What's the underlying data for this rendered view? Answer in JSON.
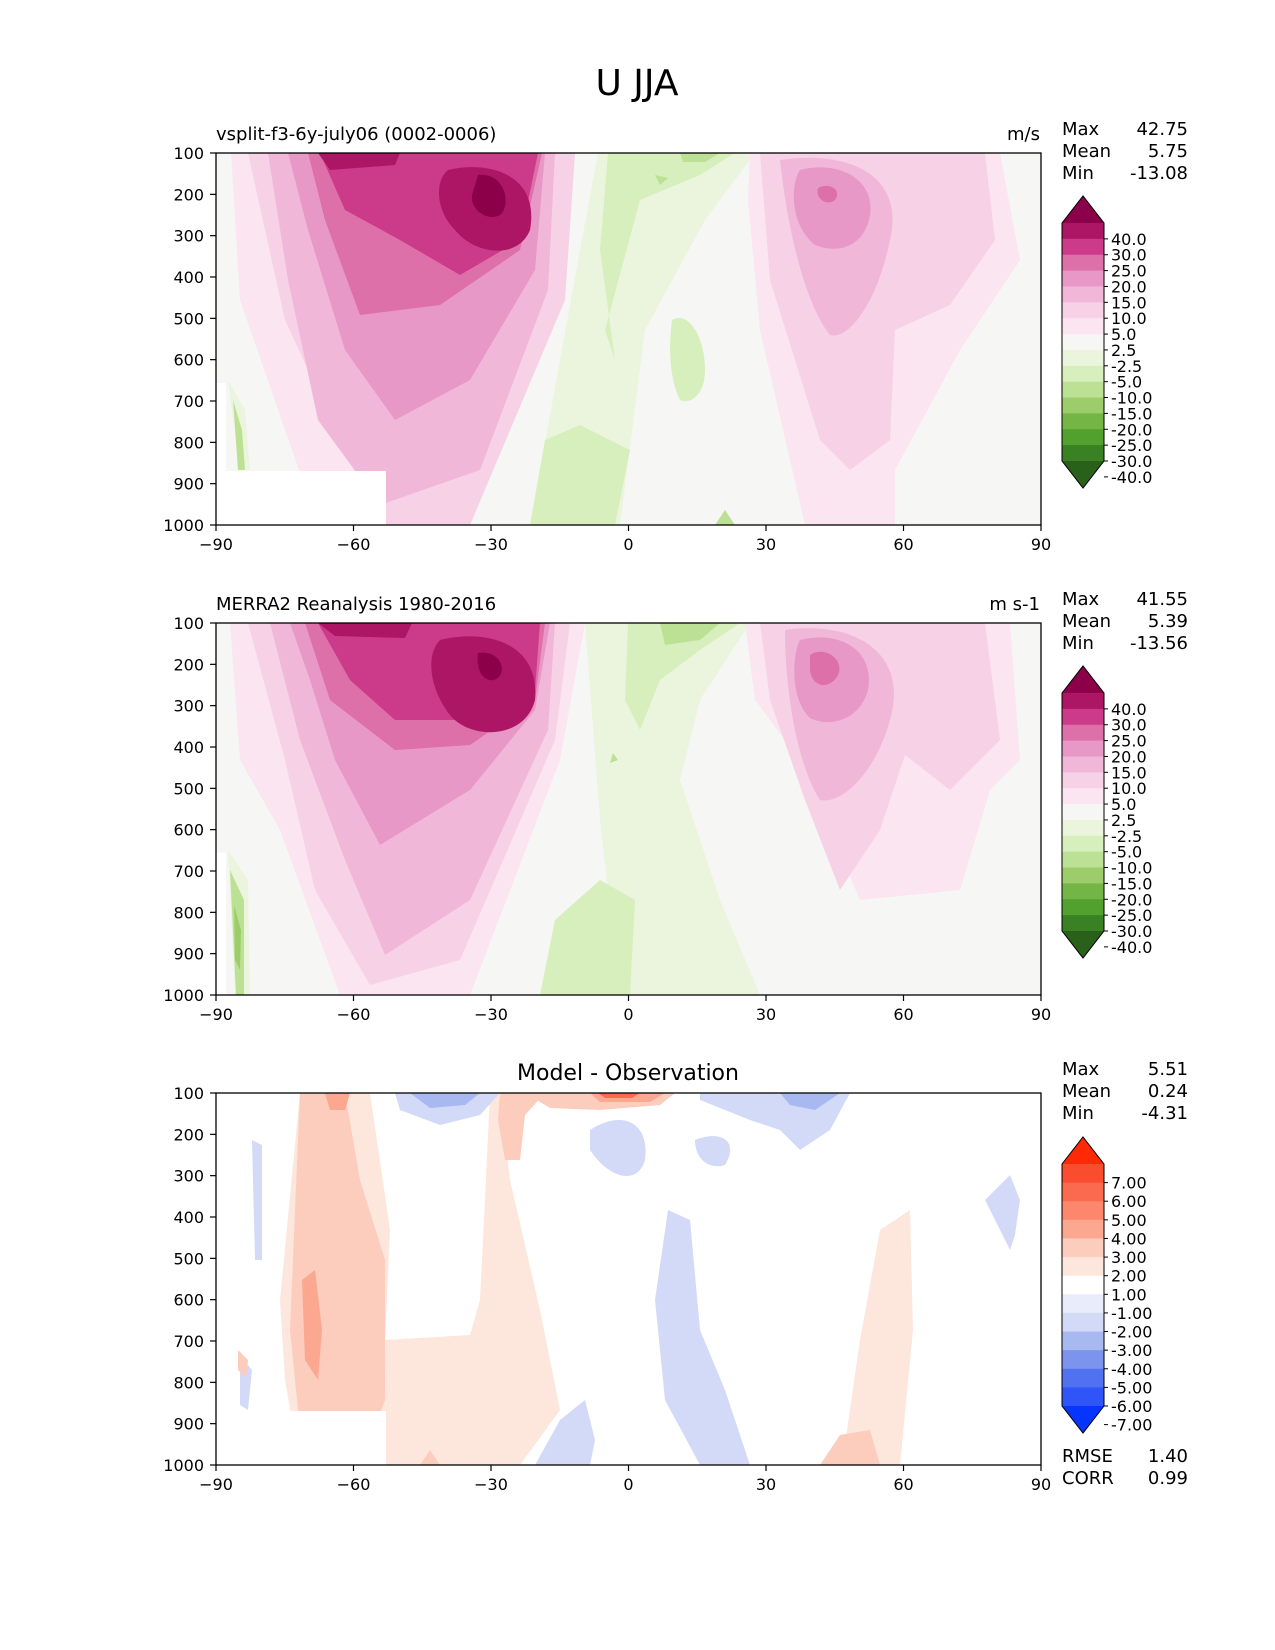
{
  "title": "U JJA",
  "colors": {
    "uv_fill_colors": [
      "#29601a",
      "#3a8124",
      "#52a02e",
      "#73b645",
      "#9ccd6a",
      "#bde194",
      "#d7efbd",
      "#ebf5de",
      "#f6f6f4",
      "#fbe5f1",
      "#f7d1e6",
      "#f1b7d8",
      "#e798c7",
      "#dd6fa9",
      "#cc3a8a",
      "#ad1665",
      "#8c0049"
    ],
    "diff_fill_colors": [
      "#0535ff",
      "#2f55f8",
      "#5172f0",
      "#7d94ee",
      "#a8b8f1",
      "#d2daf8",
      "#e8ecfb",
      "#ffffff",
      "#fde6dc",
      "#fcccbc",
      "#fca790",
      "#fc876c",
      "#fb6a4f",
      "#fa4c2e",
      "#ff2a05"
    ]
  },
  "chart_data": [
    {
      "type": "contour",
      "variable": "U",
      "title_left": "vsplit-f3-6y-july06 (0002-0006)",
      "title_right": "m/s",
      "xlim": [
        -90,
        90
      ],
      "ylim": [
        1000,
        100
      ],
      "xticks": [
        "−90",
        "−60",
        "−30",
        "0",
        "30",
        "60",
        "90"
      ],
      "yticks": [
        "100",
        "200",
        "300",
        "400",
        "500",
        "600",
        "700",
        "800",
        "900",
        "1000"
      ],
      "stats": {
        "max_label": "Max",
        "max": "42.75",
        "mean_label": "Mean",
        "mean": "5.75",
        "min_label": "Min",
        "min": "-13.08"
      },
      "colorbar_levels": [
        "40.0",
        "30.0",
        "25.0",
        "20.0",
        "15.0",
        "10.0",
        "5.0",
        "2.5",
        "-2.5",
        "-5.0",
        "-10.0",
        "-15.0",
        "-20.0",
        "-25.0",
        "-30.0",
        "-40.0"
      ],
      "jets": [
        {
          "lat": -27,
          "p": 200,
          "value": 42.75
        },
        {
          "lat": 44,
          "p": 200,
          "value": 22
        },
        {
          "lat": 8,
          "p": 170,
          "value": -13.08
        }
      ]
    },
    {
      "type": "contour",
      "variable": "U",
      "title_left": "MERRA2 Reanalysis 1980-2016",
      "title_right": "m s-1",
      "xlim": [
        -90,
        90
      ],
      "ylim": [
        1000,
        100
      ],
      "xticks": [
        "−90",
        "−60",
        "−30",
        "0",
        "30",
        "60",
        "90"
      ],
      "yticks": [
        "100",
        "200",
        "300",
        "400",
        "500",
        "600",
        "700",
        "800",
        "900",
        "1000"
      ],
      "stats": {
        "max_label": "Max",
        "max": "41.55",
        "mean_label": "Mean",
        "mean": "5.39",
        "min_label": "Min",
        "min": "-13.56"
      },
      "colorbar_levels": [
        "40.0",
        "30.0",
        "25.0",
        "20.0",
        "15.0",
        "10.0",
        "5.0",
        "2.5",
        "-2.5",
        "-5.0",
        "-10.0",
        "-15.0",
        "-20.0",
        "-25.0",
        "-30.0",
        "-40.0"
      ],
      "jets": [
        {
          "lat": -30,
          "p": 200,
          "value": 41.55
        },
        {
          "lat": 43,
          "p": 200,
          "value": 21
        },
        {
          "lat": 8,
          "p": 130,
          "value": -13.56
        }
      ]
    },
    {
      "type": "contour",
      "variable": "U difference",
      "title_center": "Model - Observation",
      "xlim": [
        -90,
        90
      ],
      "ylim": [
        1000,
        100
      ],
      "xticks": [
        "−90",
        "−60",
        "−30",
        "0",
        "30",
        "60",
        "90"
      ],
      "yticks": [
        "100",
        "200",
        "300",
        "400",
        "500",
        "600",
        "700",
        "800",
        "900",
        "1000"
      ],
      "stats": {
        "max_label": "Max",
        "max": "5.51",
        "mean_label": "Mean",
        "mean": "0.24",
        "min_label": "Min",
        "min": "-4.31"
      },
      "colorbar_levels": [
        "7.00",
        "6.00",
        "5.00",
        "4.00",
        "3.00",
        "2.00",
        "1.00",
        "-1.00",
        "-2.00",
        "-3.00",
        "-4.00",
        "-5.00",
        "-6.00",
        "-7.00"
      ],
      "metrics": {
        "rmse_label": "RMSE",
        "rmse": "1.40",
        "corr_label": "CORR",
        "corr": "0.99"
      }
    }
  ]
}
